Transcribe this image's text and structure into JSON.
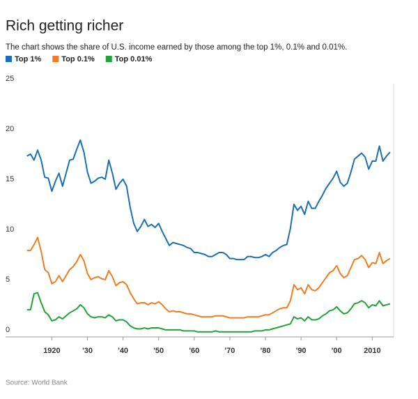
{
  "chart_data": {
    "type": "line",
    "title": "Rich getting richer",
    "subtitle": "The chart shows the share of U.S. income earned by those among the top 1%, 0.1% and 0.01%.",
    "source": "Source: World Bank",
    "x": [
      1913,
      1914,
      1915,
      1916,
      1917,
      1918,
      1919,
      1920,
      1921,
      1922,
      1923,
      1924,
      1925,
      1926,
      1927,
      1928,
      1929,
      1930,
      1931,
      1932,
      1933,
      1934,
      1935,
      1936,
      1937,
      1938,
      1939,
      1940,
      1941,
      1942,
      1943,
      1944,
      1945,
      1946,
      1947,
      1948,
      1949,
      1950,
      1951,
      1952,
      1953,
      1954,
      1955,
      1956,
      1957,
      1958,
      1959,
      1960,
      1961,
      1962,
      1963,
      1964,
      1965,
      1966,
      1967,
      1968,
      1969,
      1970,
      1971,
      1972,
      1973,
      1974,
      1975,
      1976,
      1977,
      1978,
      1979,
      1980,
      1981,
      1982,
      1983,
      1984,
      1985,
      1986,
      1987,
      1988,
      1989,
      1990,
      1991,
      1992,
      1993,
      1994,
      1995,
      1996,
      1997,
      1998,
      1999,
      2000,
      2001,
      2002,
      2003,
      2004,
      2005,
      2006,
      2007,
      2008,
      2009,
      2010,
      2011,
      2012,
      2013,
      2014,
      2015
    ],
    "series": [
      {
        "name": "Top 1%",
        "color": "#1a6fb5",
        "values": [
          18.0,
          18.2,
          17.6,
          18.6,
          17.6,
          15.9,
          15.8,
          14.5,
          15.5,
          16.3,
          15.0,
          16.3,
          17.6,
          17.7,
          18.7,
          19.6,
          18.4,
          16.4,
          15.3,
          15.5,
          15.8,
          15.9,
          15.7,
          17.6,
          16.3,
          14.7,
          15.3,
          15.7,
          15.0,
          12.9,
          11.3,
          10.5,
          11.0,
          11.7,
          11.0,
          11.2,
          10.9,
          11.3,
          10.5,
          9.8,
          9.1,
          9.4,
          9.3,
          9.2,
          9.1,
          8.9,
          8.8,
          8.4,
          8.4,
          8.3,
          8.2,
          8.0,
          8.0,
          8.2,
          8.4,
          8.4,
          8.2,
          7.8,
          7.8,
          7.7,
          7.7,
          7.7,
          8.0,
          8.0,
          7.9,
          7.9,
          8.0,
          8.2,
          8.0,
          8.4,
          8.6,
          8.9,
          9.1,
          9.2,
          10.8,
          13.2,
          12.6,
          13.0,
          12.2,
          13.5,
          12.8,
          12.8,
          13.5,
          14.1,
          14.8,
          15.3,
          15.8,
          16.5,
          15.4,
          15.0,
          15.3,
          16.4,
          17.7,
          18.0,
          18.3,
          17.9,
          16.7,
          17.5,
          17.5,
          19.0,
          17.5,
          18.0,
          18.4
        ]
      },
      {
        "name": "Top 0.1%",
        "color": "#f47b20",
        "values": [
          8.6,
          8.6,
          9.2,
          9.9,
          8.5,
          6.7,
          6.4,
          5.3,
          5.5,
          6.1,
          5.5,
          6.1,
          6.7,
          7.0,
          7.5,
          8.2,
          7.6,
          6.3,
          5.7,
          5.9,
          6.0,
          5.8,
          5.7,
          6.6,
          6.0,
          5.1,
          5.4,
          5.5,
          5.2,
          4.4,
          3.8,
          3.3,
          3.4,
          3.4,
          3.2,
          3.4,
          3.3,
          3.5,
          3.2,
          2.8,
          2.5,
          2.6,
          2.5,
          2.5,
          2.4,
          2.3,
          2.3,
          2.2,
          2.1,
          2.0,
          2.0,
          2.0,
          2.0,
          2.1,
          2.1,
          2.1,
          2.0,
          1.9,
          1.9,
          1.9,
          1.9,
          1.9,
          2.0,
          2.0,
          2.0,
          2.0,
          2.1,
          2.2,
          2.2,
          2.4,
          2.6,
          2.8,
          2.9,
          2.9,
          3.6,
          5.2,
          4.7,
          4.9,
          4.3,
          5.2,
          4.7,
          4.6,
          4.9,
          5.4,
          5.9,
          6.4,
          6.6,
          7.1,
          6.3,
          5.9,
          6.1,
          6.9,
          7.7,
          7.8,
          8.1,
          7.7,
          6.9,
          7.4,
          7.3,
          8.4,
          7.3,
          7.6,
          7.8
        ]
      },
      {
        "name": "Top 0.01%",
        "color": "#22a33a",
        "values": [
          2.7,
          2.7,
          4.3,
          4.4,
          3.4,
          2.5,
          2.2,
          1.6,
          1.7,
          2.0,
          1.8,
          2.1,
          2.4,
          2.6,
          2.8,
          3.2,
          2.9,
          2.3,
          2.0,
          1.9,
          2.0,
          2.0,
          1.9,
          2.2,
          2.0,
          1.6,
          1.7,
          1.7,
          1.5,
          1.1,
          0.9,
          0.8,
          0.8,
          0.9,
          0.8,
          0.9,
          0.9,
          0.9,
          0.8,
          0.7,
          0.7,
          0.7,
          0.7,
          0.7,
          0.6,
          0.6,
          0.6,
          0.6,
          0.5,
          0.5,
          0.5,
          0.5,
          0.5,
          0.6,
          0.5,
          0.5,
          0.5,
          0.5,
          0.5,
          0.5,
          0.5,
          0.5,
          0.5,
          0.5,
          0.6,
          0.6,
          0.6,
          0.7,
          0.7,
          0.8,
          0.9,
          1.0,
          1.1,
          1.2,
          1.3,
          2.0,
          1.8,
          1.9,
          1.6,
          2.0,
          1.7,
          1.7,
          1.8,
          2.1,
          2.3,
          2.6,
          2.7,
          3.0,
          2.6,
          2.3,
          2.4,
          2.8,
          3.3,
          3.4,
          3.6,
          3.4,
          2.9,
          3.2,
          3.1,
          3.6,
          3.1,
          3.2,
          3.3
        ]
      }
    ],
    "xlim": [
      1907,
      2016
    ],
    "xticks": [
      {
        "value": 1920,
        "label": "1920"
      },
      {
        "value": 1930,
        "label": "'30"
      },
      {
        "value": 1940,
        "label": "'40"
      },
      {
        "value": 1950,
        "label": "'50"
      },
      {
        "value": 1960,
        "label": "'60"
      },
      {
        "value": 1970,
        "label": "'70"
      },
      {
        "value": 1980,
        "label": "'80"
      },
      {
        "value": 1990,
        "label": "'90"
      },
      {
        "value": 2000,
        "label": "'00"
      },
      {
        "value": 2010,
        "label": "2010"
      }
    ],
    "ylim": [
      0,
      25
    ],
    "yticks": [
      0,
      5,
      10,
      15,
      20,
      25
    ],
    "grid": false,
    "legend": "top-left"
  }
}
